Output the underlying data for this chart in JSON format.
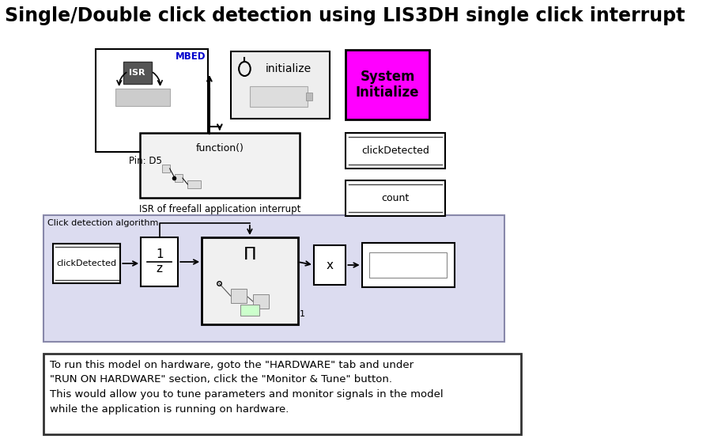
{
  "title": "Single/Double click detection using LIS3DH single click interrupt",
  "title_fontsize": 17,
  "title_fontweight": "bold",
  "bg_color": "#ffffff",
  "text_box_lines": [
    "To run this model on hardware, goto the \"HARDWARE\" tab and under",
    "\"RUN ON HARDWARE\" section, click the \"Monitor & Tune\" button.",
    "This would allow you to tune parameters and monitor signals in the model",
    "while the application is running on hardware."
  ],
  "mbed_label": "MBED",
  "mbed_color": "#0000cc",
  "sr_label": "ISR",
  "pin_label": "Pin: D5",
  "initialize_label": "initialize",
  "system_init_label": "System\nInitialize",
  "system_init_bg": "#ff00ff",
  "function_label": "function()",
  "isr_label": "ISR of freefall application interrupt",
  "click_detected_label": "clickDetected",
  "count_label": "count",
  "algo_label": "Click detection algorithm",
  "algo_bg": "#dcdcf0",
  "algo_border": "#8888aa",
  "x_label": "x"
}
